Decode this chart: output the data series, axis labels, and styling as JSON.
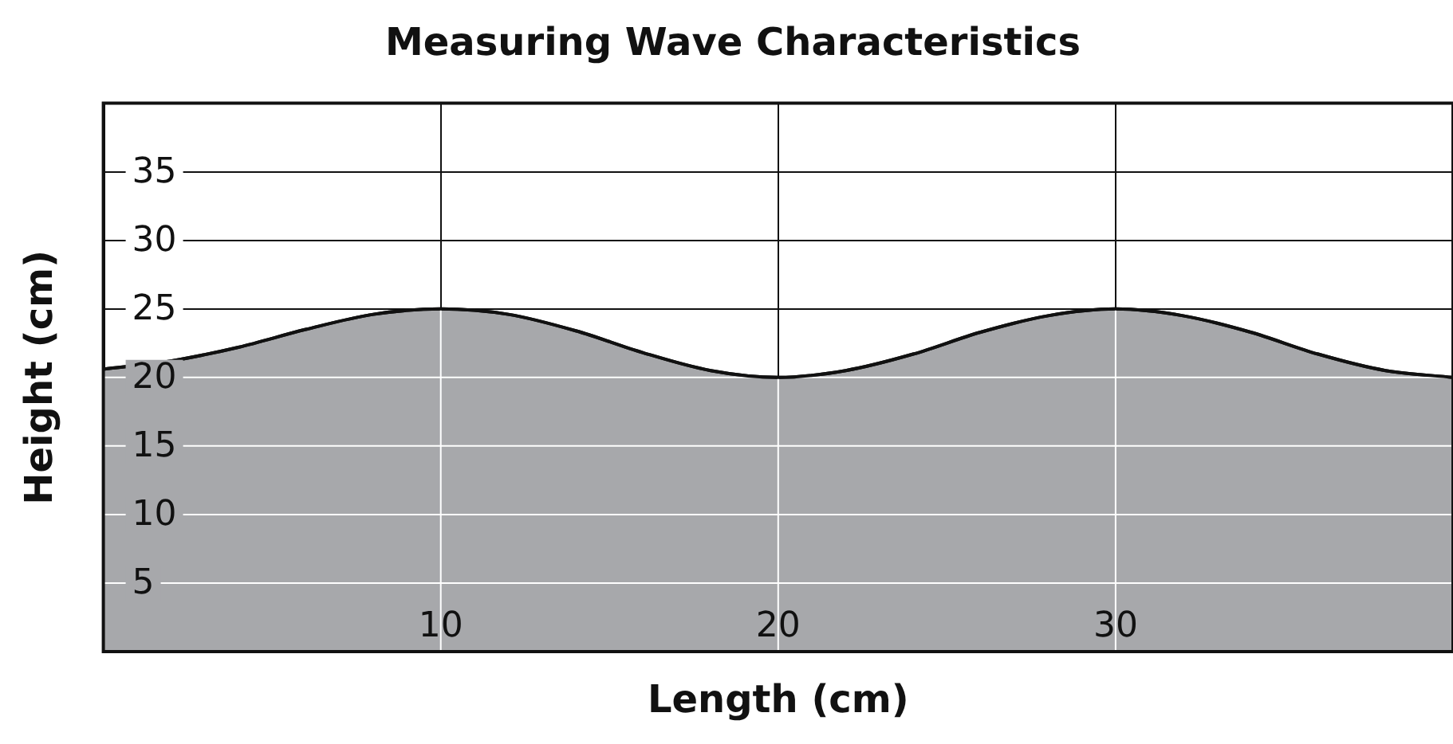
{
  "chart_data": {
    "type": "area",
    "title": "Measuring Wave Characteristics",
    "xlabel": "Length (cm)",
    "ylabel": "Height (cm)",
    "x": [
      0,
      2,
      4,
      6,
      8,
      10,
      12,
      14,
      16,
      18,
      20,
      22,
      24,
      26,
      28,
      30,
      32,
      34,
      36,
      38,
      40
    ],
    "series": [
      {
        "color": "#a7a8ab",
        "values": [
          20.6,
          21.2,
          22.2,
          23.5,
          24.6,
          25,
          24.6,
          23.4,
          21.8,
          20.5,
          20,
          20.5,
          21.7,
          23.3,
          24.5,
          25,
          24.5,
          23.3,
          21.7,
          20.5,
          20
        ]
      }
    ],
    "xlim": [
      0,
      40
    ],
    "xticks": [
      10,
      20,
      30
    ],
    "ylim": [
      0,
      40
    ],
    "yticks": [
      5,
      10,
      15,
      20,
      25,
      30,
      35
    ],
    "grid": true,
    "legend": false,
    "marker": "none",
    "line_style": "solid"
  }
}
